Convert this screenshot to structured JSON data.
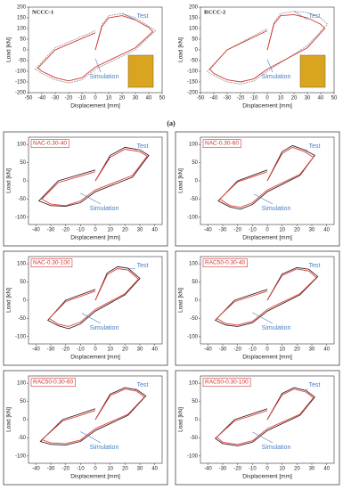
{
  "figure_label": "(a)",
  "chart_data": [
    {
      "type": "line",
      "title": "NCCC-1",
      "xlabel": "Displacement [mm]",
      "ylabel": "Load [kN]",
      "xlim": [
        -50,
        50
      ],
      "xticks": [
        -50,
        -40,
        -30,
        -20,
        -10,
        0,
        10,
        20,
        30,
        40,
        50
      ],
      "ylim": [
        -200,
        200
      ],
      "yticks": [
        -200,
        -150,
        -100,
        -50,
        0,
        50,
        100,
        150,
        200
      ],
      "series": [
        {
          "name": "Test",
          "color": "#9a9a9a",
          "x": [
            0,
            5,
            10,
            20,
            30,
            40,
            45,
            30,
            0,
            -10,
            -20,
            -30,
            -40,
            -45,
            -30,
            0
          ],
          "values": [
            0,
            120,
            160,
            170,
            150,
            110,
            90,
            0,
            -90,
            -140,
            -155,
            -140,
            -110,
            -90,
            10,
            90
          ]
        },
        {
          "name": "Simulation",
          "color": "#d2322d",
          "x": [
            0,
            5,
            10,
            20,
            30,
            40,
            43,
            30,
            0,
            -10,
            -20,
            -30,
            -40,
            -43,
            -30,
            0
          ],
          "values": [
            0,
            110,
            150,
            160,
            140,
            105,
            85,
            10,
            -80,
            -130,
            -145,
            -130,
            -100,
            -85,
            0,
            80
          ]
        }
      ]
    },
    {
      "type": "line",
      "title": "RCCC-2",
      "xlabel": "Displacement [mm]",
      "ylabel": "Load [kN]",
      "xlim": [
        -50,
        50
      ],
      "xticks": [
        -50,
        -40,
        -30,
        -20,
        -10,
        0,
        10,
        20,
        30,
        40,
        50
      ],
      "ylim": [
        -200,
        200
      ],
      "yticks": [
        -200,
        -150,
        -100,
        -50,
        0,
        50,
        100,
        150,
        200
      ],
      "series": [
        {
          "name": "Test",
          "color": "#9a9a9a",
          "x": [
            0,
            5,
            10,
            20,
            30,
            40,
            45,
            30,
            0,
            -10,
            -20,
            -30,
            -40,
            -45,
            -30,
            0
          ],
          "values": [
            0,
            130,
            170,
            180,
            175,
            150,
            120,
            20,
            -100,
            -145,
            -160,
            -150,
            -120,
            -100,
            0,
            100
          ]
        },
        {
          "name": "Simulation",
          "color": "#d2322d",
          "x": [
            0,
            5,
            10,
            20,
            30,
            40,
            43,
            30,
            0,
            -10,
            -20,
            -30,
            -40,
            -43,
            -30,
            0
          ],
          "values": [
            0,
            120,
            160,
            165,
            150,
            120,
            100,
            10,
            -90,
            -135,
            -150,
            -140,
            -110,
            -90,
            0,
            90
          ]
        }
      ]
    },
    {
      "type": "line",
      "title": "NAC-0.30-40",
      "xlabel": "Displacement [mm]",
      "ylabel": "Load [kN]",
      "xlim": [
        -45,
        45
      ],
      "xticks": [
        -40,
        -30,
        -20,
        -10,
        0,
        10,
        20,
        30,
        40
      ],
      "ylim": [
        -120,
        120
      ],
      "yticks": [
        -100,
        -50,
        0,
        50,
        100
      ],
      "series": [
        {
          "name": "Test",
          "color": "#3b1f1f",
          "x": [
            0,
            10,
            20,
            30,
            36,
            25,
            0,
            -10,
            -20,
            -30,
            -38,
            -25,
            0
          ],
          "values": [
            0,
            70,
            92,
            85,
            70,
            10,
            -30,
            -60,
            -70,
            -68,
            -55,
            0,
            30
          ]
        },
        {
          "name": "Simulation",
          "color": "#e0403a",
          "x": [
            0,
            10,
            20,
            30,
            35,
            25,
            0,
            -10,
            -20,
            -30,
            -36,
            -25,
            0
          ],
          "values": [
            0,
            65,
            87,
            80,
            68,
            15,
            -25,
            -55,
            -68,
            -64,
            -50,
            -5,
            25
          ]
        }
      ]
    },
    {
      "type": "line",
      "title": "NAC-0.30-60",
      "xlabel": "Displacement [mm]",
      "ylabel": "Load [kN]",
      "xlim": [
        -45,
        45
      ],
      "xticks": [
        -40,
        -30,
        -20,
        -10,
        0,
        10,
        20,
        30,
        40
      ],
      "ylim": [
        -120,
        120
      ],
      "yticks": [
        -100,
        -50,
        0,
        50,
        100
      ],
      "series": [
        {
          "name": "Test",
          "color": "#3b1f1f",
          "x": [
            0,
            10,
            17,
            25,
            32,
            22,
            0,
            -10,
            -18,
            -25,
            -33,
            -20,
            0
          ],
          "values": [
            0,
            80,
            97,
            85,
            70,
            15,
            -30,
            -65,
            -78,
            -72,
            -55,
            0,
            30
          ]
        },
        {
          "name": "Simulation",
          "color": "#e0403a",
          "x": [
            0,
            10,
            17,
            25,
            31,
            22,
            0,
            -10,
            -18,
            -25,
            -32,
            -20,
            0
          ],
          "values": [
            0,
            75,
            92,
            80,
            65,
            18,
            -25,
            -60,
            -73,
            -68,
            -50,
            -3,
            25
          ]
        }
      ]
    },
    {
      "type": "line",
      "title": "NAC-0.30-100",
      "xlabel": "Displacement [mm]",
      "ylabel": "Load [kN]",
      "xlim": [
        -45,
        45
      ],
      "xticks": [
        -40,
        -30,
        -20,
        -10,
        0,
        10,
        20,
        30,
        40
      ],
      "ylim": [
        -120,
        120
      ],
      "yticks": [
        -100,
        -50,
        0,
        50,
        100
      ],
      "series": [
        {
          "name": "Test",
          "color": "#3b1f1f",
          "x": [
            0,
            8,
            15,
            22,
            30,
            20,
            0,
            -10,
            -18,
            -25,
            -32,
            -20,
            0
          ],
          "values": [
            0,
            75,
            92,
            88,
            60,
            15,
            -30,
            -65,
            -78,
            -70,
            -55,
            0,
            30
          ]
        },
        {
          "name": "Simulation",
          "color": "#e0403a",
          "x": [
            0,
            8,
            15,
            22,
            29,
            20,
            0,
            -10,
            -18,
            -25,
            -31,
            -20,
            0
          ],
          "values": [
            0,
            70,
            87,
            83,
            58,
            18,
            -25,
            -60,
            -72,
            -66,
            -50,
            -4,
            25
          ]
        }
      ]
    },
    {
      "type": "line",
      "title": "RAC50-0.30-40",
      "xlabel": "Displacement [mm]",
      "ylabel": "Load [kN]",
      "xlim": [
        -45,
        45
      ],
      "xticks": [
        -40,
        -30,
        -20,
        -10,
        0,
        10,
        20,
        30,
        40
      ],
      "ylim": [
        -120,
        120
      ],
      "yticks": [
        -100,
        -50,
        0,
        50,
        100
      ],
      "series": [
        {
          "name": "Test",
          "color": "#3b1f1f",
          "x": [
            0,
            10,
            20,
            28,
            34,
            22,
            0,
            -10,
            -20,
            -28,
            -35,
            -22,
            0
          ],
          "values": [
            0,
            72,
            90,
            85,
            65,
            15,
            -30,
            -62,
            -72,
            -68,
            -55,
            0,
            30
          ]
        },
        {
          "name": "Simulation",
          "color": "#e0403a",
          "x": [
            0,
            10,
            20,
            28,
            33,
            22,
            0,
            -10,
            -20,
            -28,
            -34,
            -22,
            0
          ],
          "values": [
            0,
            68,
            86,
            80,
            62,
            18,
            -25,
            -58,
            -68,
            -64,
            -50,
            -4,
            25
          ]
        }
      ]
    },
    {
      "type": "line",
      "title": "RAC50-0.30-60",
      "xlabel": "Displacement [mm]",
      "ylabel": "Load [kN]",
      "xlim": [
        -45,
        45
      ],
      "xticks": [
        -40,
        -30,
        -20,
        -10,
        0,
        10,
        20,
        30,
        40
      ],
      "ylim": [
        -120,
        120
      ],
      "yticks": [
        -100,
        -50,
        0,
        50,
        100
      ],
      "series": [
        {
          "name": "Test",
          "color": "#3b1f1f",
          "x": [
            0,
            10,
            20,
            28,
            34,
            22,
            0,
            -10,
            -20,
            -30,
            -37,
            -22,
            0
          ],
          "values": [
            0,
            70,
            88,
            82,
            65,
            12,
            -30,
            -60,
            -70,
            -68,
            -60,
            0,
            30
          ]
        },
        {
          "name": "Simulation",
          "color": "#e0403a",
          "x": [
            0,
            10,
            20,
            28,
            33,
            22,
            0,
            -10,
            -20,
            -30,
            -36,
            -22,
            0
          ],
          "values": [
            0,
            66,
            84,
            78,
            62,
            15,
            -25,
            -56,
            -66,
            -64,
            -55,
            -4,
            25
          ]
        }
      ]
    },
    {
      "type": "line",
      "title": "RAC50-0.30-100",
      "xlabel": "Displacement [mm]",
      "ylabel": "Load [kN]",
      "xlim": [
        -45,
        45
      ],
      "xticks": [
        -40,
        -30,
        -20,
        -10,
        0,
        10,
        20,
        30,
        40
      ],
      "ylim": [
        -120,
        120
      ],
      "yticks": [
        -100,
        -50,
        0,
        50,
        100
      ],
      "series": [
        {
          "name": "Test",
          "color": "#3b1f1f",
          "x": [
            0,
            10,
            18,
            26,
            32,
            22,
            0,
            -10,
            -20,
            -30,
            -35,
            -22,
            0
          ],
          "values": [
            0,
            72,
            88,
            80,
            62,
            12,
            -30,
            -62,
            -72,
            -66,
            -52,
            0,
            30
          ]
        },
        {
          "name": "Simulation",
          "color": "#e0403a",
          "x": [
            0,
            10,
            18,
            26,
            31,
            22,
            0,
            -10,
            -20,
            -30,
            -34,
            -22,
            0
          ],
          "values": [
            0,
            68,
            84,
            76,
            60,
            15,
            -25,
            -58,
            -68,
            -62,
            -48,
            -4,
            25
          ]
        }
      ]
    }
  ]
}
